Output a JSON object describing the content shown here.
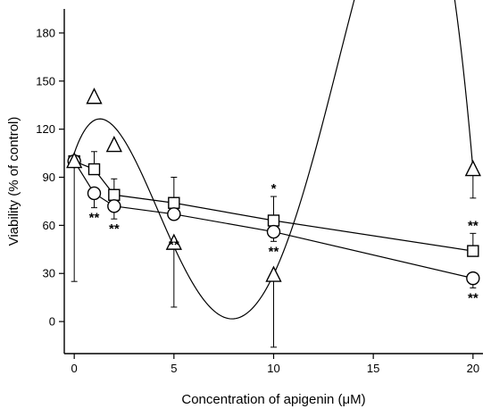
{
  "chart_data": {
    "type": "scatter",
    "xlabel": "Concentration of apigenin (μM)",
    "ylabel": "Viability (% of control)",
    "xlim": [
      -0.5,
      20.5
    ],
    "ylim": [
      -20,
      195
    ],
    "x_ticks": [
      0,
      5,
      10,
      15,
      20
    ],
    "x_tick_labels": [
      "0",
      "5",
      "10",
      "15",
      "20"
    ],
    "y_ticks": [
      0,
      30,
      60,
      90,
      120,
      150,
      180
    ],
    "y_tick_labels": [
      "0",
      "30",
      "60",
      "90",
      "120",
      "150",
      "180"
    ],
    "grid": false,
    "series": [
      {
        "marker": "square",
        "x": [
          0,
          1,
          2,
          5,
          10,
          20
        ],
        "y": [
          100,
          95,
          79,
          74,
          63,
          44
        ],
        "err_up": [
          0,
          11,
          10,
          16,
          15,
          11
        ],
        "significance": [
          "",
          "",
          "",
          "",
          "*",
          "**"
        ],
        "fit": "linear"
      },
      {
        "marker": "circle",
        "x": [
          0,
          1,
          2,
          5,
          10,
          20
        ],
        "y": [
          100,
          80,
          72,
          67,
          56,
          27
        ],
        "err_down": [
          0,
          9,
          8,
          0,
          6,
          6
        ],
        "significance": [
          "",
          "**",
          "**",
          "",
          "**",
          "**"
        ],
        "fit": "linear"
      },
      {
        "marker": "triangle",
        "x": [
          0,
          1,
          2,
          5,
          10,
          20
        ],
        "y": [
          100,
          140,
          110,
          49,
          29,
          95
        ],
        "err_down": [
          75,
          0,
          0,
          40,
          45,
          18
        ],
        "significance": [
          "",
          "",
          "",
          "**",
          "",
          ""
        ],
        "fit": "polynomial"
      }
    ]
  }
}
